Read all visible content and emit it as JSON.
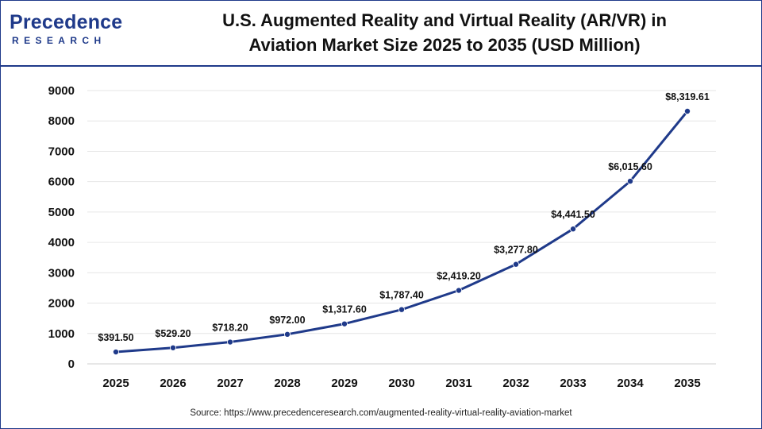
{
  "brand": {
    "name": "Precedence",
    "sub": "RESEARCH",
    "color": "#1f3a8a"
  },
  "title_line1": "U.S. Augmented Reality and Virtual Reality (AR/VR) in",
  "title_line2": "Aviation Market Size 2025 to 2035 (USD Million)",
  "source": "Source: https://www.precedenceresearch.com/augmented-reality-virtual-reality-aviation-market",
  "chart_data": {
    "type": "line",
    "title": "U.S. Augmented Reality and Virtual Reality (AR/VR) in Aviation Market Size 2025 to 2035 (USD Million)",
    "xlabel": "",
    "ylabel": "",
    "x": [
      "2025",
      "2026",
      "2027",
      "2028",
      "2029",
      "2030",
      "2031",
      "2032",
      "2033",
      "2034",
      "2035"
    ],
    "values": [
      391.5,
      529.2,
      718.2,
      972.0,
      1317.6,
      1787.4,
      2419.2,
      3277.8,
      4441.5,
      6015.6,
      8319.61
    ],
    "labels": [
      "$391.50",
      "$529.20",
      "$718.20",
      "$972.00",
      "$1,317.60",
      "$1,787.40",
      "$2,419.20",
      "$3,277.80",
      "$4,441.50",
      "$6,015.60",
      "$8,319.61"
    ],
    "yticks": [
      0,
      1000,
      2000,
      3000,
      4000,
      5000,
      6000,
      7000,
      8000,
      9000
    ],
    "ylim": [
      0,
      9000
    ],
    "grid": true,
    "legend": "none",
    "line_color": "#1f3a8a"
  }
}
